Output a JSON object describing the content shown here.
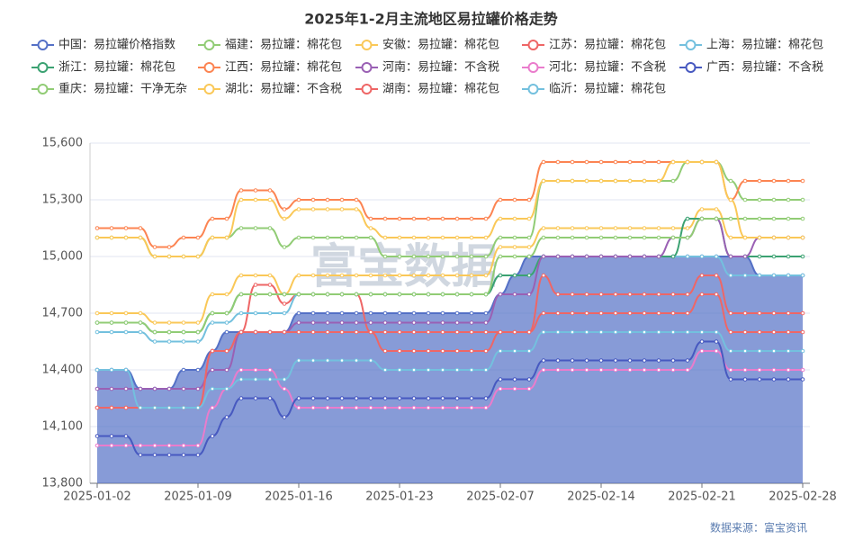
{
  "chart_data": {
    "type": "line",
    "title": "2025年1-2月主流地区易拉罐价格走势",
    "watermark": "富宝数据",
    "source": "数据来源：富宝资讯",
    "legend": "top",
    "grid": true,
    "categories": [
      "2025-01-02",
      null,
      null,
      null,
      null,
      null,
      null,
      "2025-01-09",
      null,
      null,
      null,
      null,
      null,
      null,
      "2025-01-16",
      null,
      null,
      null,
      null,
      null,
      null,
      "2025-01-23",
      null,
      null,
      null,
      null,
      null,
      null,
      "2025-02-07",
      null,
      null,
      null,
      null,
      null,
      null,
      "2025-02-14",
      null,
      null,
      null,
      null,
      null,
      null,
      "2025-02-21",
      null,
      null,
      null,
      null,
      null,
      null,
      "2025-02-28"
    ],
    "ylim": [
      13800,
      15600
    ],
    "yticks": [
      {
        "value": 13800,
        "label": "13,800"
      },
      {
        "value": 14100,
        "label": "14,100"
      },
      {
        "value": 14400,
        "label": "14,400"
      },
      {
        "value": 14700,
        "label": "14,700"
      },
      {
        "value": 15000,
        "label": "15,000"
      },
      {
        "value": 15300,
        "label": "15,300"
      },
      {
        "value": 15600,
        "label": "15,600"
      }
    ],
    "series": [
      {
        "name": "中国：易拉罐价格指数",
        "color": "#5470c6",
        "area": true,
        "values": [
          14400,
          14400,
          14400,
          14300,
          14300,
          14300,
          14400,
          14400,
          14500,
          14600,
          14600,
          14600,
          14600,
          14600,
          14700,
          14700,
          14700,
          14700,
          14700,
          14700,
          14700,
          14700,
          14700,
          14700,
          14700,
          14700,
          14700,
          14700,
          14800,
          14900,
          15000,
          15000,
          15000,
          15000,
          15000,
          15000,
          15000,
          15000,
          15000,
          15000,
          15000,
          15000,
          15000,
          15000,
          15000,
          15000,
          14900,
          14900,
          14900,
          14900
        ]
      },
      {
        "name": "福建：易拉罐：棉花包",
        "color": "#91cc75",
        "values": [
          15100,
          15100,
          15100,
          15100,
          15000,
          15000,
          15000,
          15000,
          15100,
          15100,
          15150,
          15150,
          15150,
          15050,
          15100,
          15100,
          15100,
          15100,
          15100,
          15100,
          15000,
          15000,
          15000,
          15000,
          15000,
          15000,
          15000,
          15000,
          15100,
          15100,
          15100,
          15400,
          15400,
          15400,
          15400,
          15400,
          15400,
          15400,
          15400,
          15400,
          15400,
          15500,
          15500,
          15500,
          15400,
          15300,
          15300,
          15300,
          15300,
          15300
        ]
      },
      {
        "name": "安徽：易拉罐：棉花包",
        "color": "#fac858",
        "values": [
          14700,
          14700,
          14700,
          14700,
          14650,
          14650,
          14650,
          14650,
          14800,
          14800,
          14900,
          14900,
          14900,
          14800,
          14900,
          14900,
          14900,
          14900,
          14900,
          14900,
          14900,
          14900,
          14900,
          14900,
          14900,
          14900,
          14900,
          14900,
          15050,
          15050,
          15050,
          15150,
          15150,
          15150,
          15150,
          15150,
          15150,
          15150,
          15150,
          15150,
          15150,
          15150,
          15250,
          15250,
          15100,
          15100,
          15100,
          15100,
          15100,
          15100
        ]
      },
      {
        "name": "江苏：易拉罐：棉花包",
        "color": "#ee6666",
        "values": [
          14200,
          14200,
          14200,
          14200,
          14200,
          14200,
          14200,
          14200,
          14500,
          14500,
          14600,
          14850,
          14850,
          14750,
          14800,
          14800,
          14800,
          14800,
          14800,
          14600,
          14500,
          14500,
          14500,
          14500,
          14500,
          14500,
          14500,
          14500,
          14600,
          14600,
          14600,
          14900,
          14800,
          14800,
          14800,
          14800,
          14800,
          14800,
          14800,
          14800,
          14800,
          14800,
          14900,
          14900,
          14700,
          14700,
          14700,
          14700,
          14700,
          14700
        ]
      },
      {
        "name": "上海：易拉罐：棉花包",
        "color": "#73c0de",
        "values": [
          14600,
          14600,
          14600,
          14600,
          14550,
          14550,
          14550,
          14550,
          14650,
          14650,
          14700,
          14700,
          14700,
          14700,
          14800,
          14800,
          14800,
          14800,
          14800,
          14800,
          14800,
          14800,
          14800,
          14800,
          14800,
          14800,
          14800,
          14800,
          14900,
          14900,
          14900,
          15000,
          15000,
          15000,
          15000,
          15000,
          15000,
          15000,
          15000,
          15000,
          15000,
          15000,
          15000,
          15000,
          14900,
          14900,
          14900,
          14900,
          14900,
          14900
        ]
      },
      {
        "name": "浙江：易拉罐：棉花包",
        "color": "#3ba272",
        "values": [
          14650,
          14650,
          14650,
          14650,
          14600,
          14600,
          14600,
          14600,
          14700,
          14700,
          14800,
          14800,
          14800,
          14800,
          14800,
          14800,
          14800,
          14800,
          14800,
          14800,
          14800,
          14800,
          14800,
          14800,
          14800,
          14800,
          14800,
          14800,
          14900,
          14900,
          14900,
          15000,
          15000,
          15000,
          15000,
          15000,
          15000,
          15000,
          15000,
          15000,
          15000,
          15200,
          15200,
          15200,
          15000,
          15000,
          15000,
          15000,
          15000,
          15000
        ]
      },
      {
        "name": "江西：易拉罐：棉花包",
        "color": "#fc8452",
        "values": [
          15150,
          15150,
          15150,
          15150,
          15050,
          15050,
          15100,
          15100,
          15200,
          15200,
          15350,
          15350,
          15350,
          15250,
          15300,
          15300,
          15300,
          15300,
          15300,
          15200,
          15200,
          15200,
          15200,
          15200,
          15200,
          15200,
          15200,
          15200,
          15300,
          15300,
          15300,
          15500,
          15500,
          15500,
          15500,
          15500,
          15500,
          15500,
          15500,
          15500,
          15500,
          15500,
          15500,
          15500,
          15300,
          15400,
          15400,
          15400,
          15400,
          15400
        ]
      },
      {
        "name": "河南：易拉罐：不含税",
        "color": "#9a60b4",
        "values": [
          14300,
          14300,
          14300,
          14300,
          14300,
          14300,
          14300,
          14300,
          14400,
          14400,
          14600,
          14600,
          14600,
          14600,
          14650,
          14650,
          14650,
          14650,
          14650,
          14650,
          14650,
          14650,
          14650,
          14650,
          14650,
          14650,
          14650,
          14650,
          14800,
          14800,
          14800,
          15000,
          15000,
          15000,
          15000,
          15000,
          15000,
          15000,
          15000,
          15000,
          15100,
          15100,
          15200,
          15200,
          15000,
          15000,
          15100,
          15100,
          15100,
          15100
        ]
      },
      {
        "name": "河北：易拉罐：不含税",
        "color": "#ea7ccc",
        "values": [
          14000,
          14000,
          14000,
          14000,
          14000,
          14000,
          14000,
          14000,
          14200,
          14300,
          14400,
          14400,
          14400,
          14300,
          14200,
          14200,
          14200,
          14200,
          14200,
          14200,
          14200,
          14200,
          14200,
          14200,
          14200,
          14200,
          14200,
          14200,
          14300,
          14300,
          14300,
          14400,
          14400,
          14400,
          14400,
          14400,
          14400,
          14400,
          14400,
          14400,
          14400,
          14400,
          14500,
          14500,
          14400,
          14400,
          14400,
          14400,
          14400,
          14400
        ]
      },
      {
        "name": "广西：易拉罐：不含税",
        "color": "#4759c0",
        "values": [
          14050,
          14050,
          14050,
          13950,
          13950,
          13950,
          13950,
          13950,
          14050,
          14150,
          14250,
          14250,
          14250,
          14150,
          14250,
          14250,
          14250,
          14250,
          14250,
          14250,
          14250,
          14250,
          14250,
          14250,
          14250,
          14250,
          14250,
          14250,
          14350,
          14350,
          14350,
          14450,
          14450,
          14450,
          14450,
          14450,
          14450,
          14450,
          14450,
          14450,
          14450,
          14450,
          14550,
          14550,
          14350,
          14350,
          14350,
          14350,
          14350,
          14350
        ]
      },
      {
        "name": "重庆：易拉罐：干净无杂",
        "color": "#91cc75",
        "values": [
          14650,
          14650,
          14650,
          14650,
          14600,
          14600,
          14600,
          14600,
          14700,
          14700,
          14800,
          14800,
          14800,
          14800,
          14800,
          14800,
          14800,
          14800,
          14800,
          14800,
          14800,
          14800,
          14800,
          14800,
          14800,
          14800,
          14800,
          14800,
          15000,
          15000,
          15000,
          15100,
          15100,
          15100,
          15100,
          15100,
          15100,
          15100,
          15100,
          15100,
          15100,
          15100,
          15200,
          15200,
          15200,
          15200,
          15200,
          15200,
          15200,
          15200
        ]
      },
      {
        "name": "湖北：易拉罐：不含税",
        "color": "#fac858",
        "values": [
          15100,
          15100,
          15100,
          15100,
          15000,
          15000,
          15000,
          15000,
          15100,
          15100,
          15300,
          15300,
          15300,
          15200,
          15250,
          15250,
          15250,
          15250,
          15250,
          15150,
          15100,
          15100,
          15100,
          15100,
          15100,
          15100,
          15100,
          15100,
          15200,
          15200,
          15200,
          15400,
          15400,
          15400,
          15400,
          15400,
          15400,
          15400,
          15400,
          15400,
          15500,
          15500,
          15500,
          15500,
          15300,
          15100,
          15100,
          15100,
          15100,
          15100
        ]
      },
      {
        "name": "湖南：易拉罐：棉花包",
        "color": "#ee6666",
        "values": [
          14200,
          14200,
          14200,
          14200,
          14200,
          14200,
          14200,
          14200,
          14500,
          14500,
          14600,
          14600,
          14600,
          14600,
          14600,
          14600,
          14600,
          14600,
          14600,
          14600,
          14600,
          14600,
          14600,
          14600,
          14600,
          14600,
          14600,
          14600,
          14600,
          14600,
          14600,
          14700,
          14700,
          14700,
          14700,
          14700,
          14700,
          14700,
          14700,
          14700,
          14700,
          14700,
          14800,
          14800,
          14600,
          14600,
          14600,
          14600,
          14600,
          14600
        ]
      },
      {
        "name": "临沂：易拉罐：棉花包",
        "color": "#73c0de",
        "values": [
          14400,
          14400,
          14400,
          14200,
          14200,
          14200,
          14200,
          14200,
          14300,
          14300,
          14350,
          14350,
          14350,
          14350,
          14450,
          14450,
          14450,
          14450,
          14450,
          14450,
          14400,
          14400,
          14400,
          14400,
          14400,
          14400,
          14400,
          14400,
          14500,
          14500,
          14500,
          14600,
          14600,
          14600,
          14600,
          14600,
          14600,
          14600,
          14600,
          14600,
          14600,
          14600,
          14600,
          14600,
          14500,
          14500,
          14500,
          14500,
          14500,
          14500
        ]
      }
    ]
  }
}
